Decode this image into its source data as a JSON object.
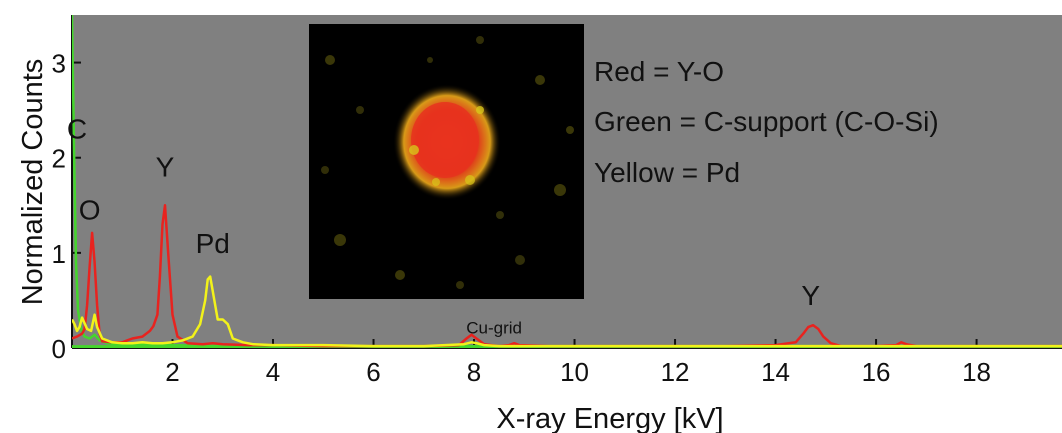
{
  "chart_data": {
    "type": "line",
    "xlabel": "X-ray Energy [kV]",
    "ylabel": "Normalized  Counts",
    "xlim": [
      0,
      19.7
    ],
    "ylim": [
      0,
      3.5
    ],
    "xticks": [
      2,
      4,
      6,
      8,
      10,
      12,
      14,
      16,
      18
    ],
    "yticks": [
      0,
      1,
      2,
      3
    ],
    "grid": false,
    "background": "#808080",
    "series": [
      {
        "color": "#e8231f",
        "x": [
          0,
          0.1,
          0.2,
          0.25,
          0.3,
          0.35,
          0.4,
          0.45,
          0.5,
          0.55,
          0.6,
          0.8,
          1.0,
          1.2,
          1.4,
          1.55,
          1.62,
          1.7,
          1.75,
          1.8,
          1.85,
          1.92,
          2.0,
          2.1,
          2.3,
          2.6,
          2.8,
          3.0,
          3.5,
          4,
          5,
          6,
          7,
          7.7,
          7.85,
          7.95,
          8.05,
          8.2,
          8.5,
          8.7,
          8.8,
          8.9,
          9.5,
          10,
          11,
          12,
          13,
          14,
          14.4,
          14.55,
          14.65,
          14.75,
          14.85,
          14.95,
          15.1,
          15.3,
          16,
          16.4,
          16.5,
          16.6,
          16.8,
          17,
          18,
          19,
          19.7
        ],
        "y": [
          0.1,
          0.12,
          0.15,
          0.2,
          0.45,
          0.85,
          1.21,
          0.9,
          0.45,
          0.15,
          0.07,
          0.06,
          0.06,
          0.1,
          0.12,
          0.18,
          0.23,
          0.35,
          0.75,
          1.3,
          1.5,
          0.95,
          0.35,
          0.12,
          0.05,
          0.04,
          0.05,
          0.04,
          0.03,
          0.03,
          0.02,
          0.02,
          0.02,
          0.03,
          0.1,
          0.14,
          0.1,
          0.04,
          0.02,
          0.03,
          0.05,
          0.03,
          0.02,
          0.02,
          0.02,
          0.02,
          0.02,
          0.03,
          0.06,
          0.15,
          0.22,
          0.24,
          0.2,
          0.12,
          0.05,
          0.02,
          0.02,
          0.03,
          0.06,
          0.04,
          0.02,
          0.02,
          0.02,
          0.02,
          0.02
        ]
      },
      {
        "color": "#f2f21a",
        "x": [
          0,
          0.05,
          0.1,
          0.15,
          0.2,
          0.3,
          0.38,
          0.45,
          0.5,
          0.6,
          0.8,
          1.0,
          1.2,
          1.4,
          1.6,
          1.8,
          2.0,
          2.2,
          2.4,
          2.55,
          2.65,
          2.7,
          2.75,
          2.8,
          2.85,
          2.9,
          3.0,
          3.1,
          3.2,
          3.4,
          3.6,
          4,
          5,
          6,
          7,
          7.8,
          7.95,
          8.05,
          8.2,
          8.5,
          9,
          10,
          12,
          14,
          16,
          18,
          19.7
        ],
        "y": [
          0.3,
          0.25,
          0.18,
          0.22,
          0.32,
          0.2,
          0.18,
          0.35,
          0.22,
          0.1,
          0.06,
          0.05,
          0.05,
          0.06,
          0.05,
          0.05,
          0.06,
          0.08,
          0.12,
          0.25,
          0.5,
          0.72,
          0.75,
          0.6,
          0.45,
          0.3,
          0.3,
          0.25,
          0.1,
          0.06,
          0.04,
          0.03,
          0.03,
          0.02,
          0.02,
          0.04,
          0.06,
          0.05,
          0.03,
          0.02,
          0.02,
          0.02,
          0.02,
          0.02,
          0.02,
          0.02,
          0.02
        ]
      },
      {
        "color": "#44d62c",
        "x": [
          0,
          0.02,
          0.05,
          0.08,
          0.12,
          0.18,
          0.25,
          0.35,
          0.45,
          0.55,
          0.7,
          0.9,
          1.2,
          1.6,
          2.0,
          3.0,
          5,
          8,
          10,
          12,
          15,
          18,
          19.7
        ],
        "y": [
          3.5,
          2.8,
          1.8,
          0.9,
          0.4,
          0.2,
          0.12,
          0.1,
          0.14,
          0.08,
          0.05,
          0.04,
          0.04,
          0.03,
          0.03,
          0.02,
          0.02,
          0.02,
          0.02,
          0.02,
          0.02,
          0.02,
          0.02
        ]
      }
    ],
    "annotations": [
      {
        "text": "C",
        "x": 0.1,
        "y": 2.2
      },
      {
        "text": "O",
        "x": 0.35,
        "y": 1.35
      },
      {
        "text": "Y",
        "x": 1.85,
        "y": 1.8
      },
      {
        "text": "Pd",
        "x": 2.8,
        "y": 1.0
      },
      {
        "text": "Cu-grid",
        "x": 8.4,
        "y": 0.15
      },
      {
        "text": "Y",
        "x": 14.7,
        "y": 0.45
      }
    ],
    "legend_notes": [
      "Red = Y-O",
      "Green = C-support (C-O-Si)",
      "Yellow = Pd"
    ]
  },
  "colors": {
    "plot_background": "#808080",
    "inset_background": "#000000",
    "particle_core": "#e8321e",
    "particle_edge": "#d8c61a"
  }
}
